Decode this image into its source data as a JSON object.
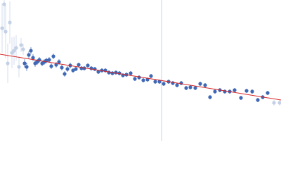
{
  "chart_data": {
    "type": "scatter",
    "xlim": [
      0,
      400
    ],
    "ylim": [
      0,
      200
    ],
    "vline": {
      "x": 230,
      "color": "#c8d4ea"
    },
    "fit": {
      "x": [
        0,
        400
      ],
      "values": [
        123,
        58
      ],
      "color": "#d62728"
    },
    "series": [
      {
        "color": "#c3d0e6",
        "x": [
          3,
          6,
          8,
          11,
          14,
          17,
          20,
          23,
          27,
          30,
          33,
          390,
          398
        ],
        "values": [
          160,
          194,
          155,
          110,
          168,
          125,
          128,
          132,
          105,
          136,
          130,
          54,
          54
        ],
        "errors": [
          35,
          40,
          38,
          28,
          30,
          22,
          20,
          18,
          15,
          10,
          8,
          4,
          4
        ]
      },
      {
        "color": "#3f68b5",
        "x": [
          35,
          38,
          41,
          44,
          47,
          50,
          53,
          56,
          60,
          63,
          66,
          70,
          73,
          76,
          80,
          84,
          88,
          92,
          96,
          100,
          104,
          108,
          112,
          116,
          120,
          125,
          130,
          135,
          140,
          145,
          150,
          155,
          160,
          165,
          170,
          175,
          180,
          186,
          192,
          198,
          204,
          210,
          215,
          221,
          227,
          233,
          240,
          246,
          252,
          258,
          265,
          271,
          278,
          285,
          292,
          299,
          306,
          313,
          320,
          327,
          334,
          343,
          351,
          359,
          367,
          374,
          381
        ],
        "values": [
          110,
          105,
          122,
          128,
          118,
          110,
          112,
          115,
          110,
          112,
          114,
          115,
          106,
          120,
          108,
          112,
          104,
          95,
          102,
          107,
          100,
          102,
          108,
          103,
          103,
          107,
          103,
          102,
          98,
          100,
          100,
          97,
          96,
          97,
          96,
          93,
          94,
          96,
          88,
          90,
          86,
          87,
          92,
          84,
          84,
          81,
          84,
          82,
          79,
          82,
          75,
          76,
          75,
          81,
          79,
          62,
          70,
          72,
          70,
          70,
          72,
          61,
          71,
          70,
          58,
          62,
          68
        ],
        "errors": [
          6,
          6,
          5,
          5,
          5,
          5,
          4,
          4,
          4,
          4,
          4,
          4,
          4,
          4,
          4,
          4,
          4,
          4,
          4,
          4,
          3,
          3,
          3,
          3,
          3,
          3,
          3,
          3,
          3,
          3,
          3,
          3,
          3,
          3,
          3,
          3,
          3,
          3,
          3,
          3,
          3,
          3,
          3,
          3,
          3,
          3,
          3,
          3,
          3,
          3,
          3,
          3,
          3,
          3,
          3,
          3,
          3,
          3,
          3,
          3,
          3,
          3,
          3,
          3,
          3,
          3,
          3
        ]
      }
    ]
  }
}
